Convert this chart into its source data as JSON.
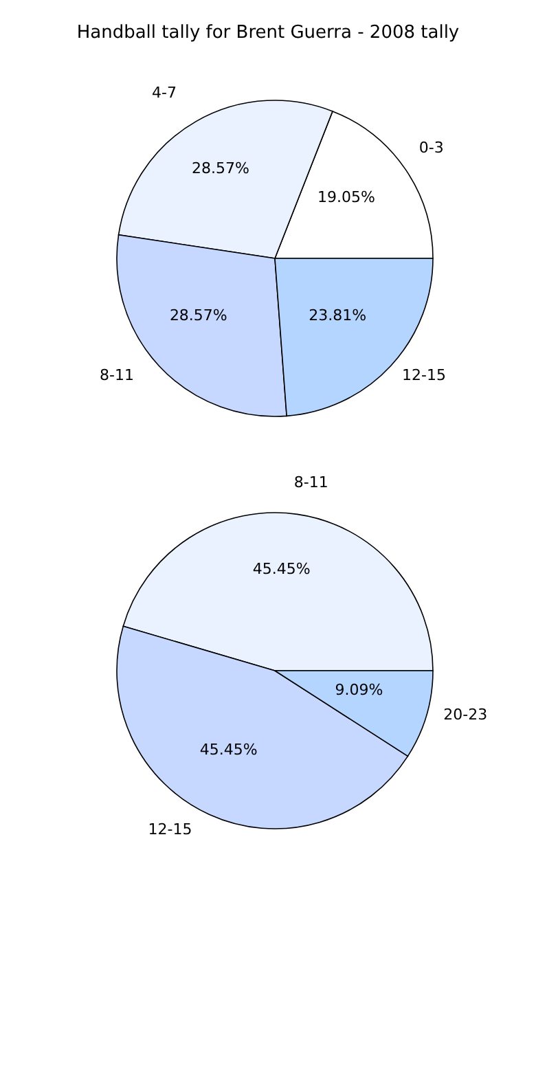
{
  "chart_data": [
    {
      "type": "pie",
      "title": "Handball tally for Brent Guerra - 2008 tally",
      "categories": [
        "0-3",
        "4-7",
        "8-11",
        "12-15"
      ],
      "values": [
        19.05,
        28.57,
        28.57,
        23.81
      ],
      "colors": [
        "#ffffff",
        "#eaf1ff",
        "#c6d8ff",
        "#b4d5ff"
      ],
      "value_labels": [
        "19.05%",
        "28.57%",
        "28.57%",
        "23.81%"
      ]
    },
    {
      "type": "pie",
      "categories": [
        "8-11",
        "12-15",
        "20-23"
      ],
      "values": [
        45.45,
        45.45,
        9.09
      ],
      "colors": [
        "#eaf1ff",
        "#c6d8ff",
        "#b4d5ff"
      ],
      "value_labels": [
        "45.45%",
        "45.45%",
        "9.09%"
      ]
    }
  ]
}
